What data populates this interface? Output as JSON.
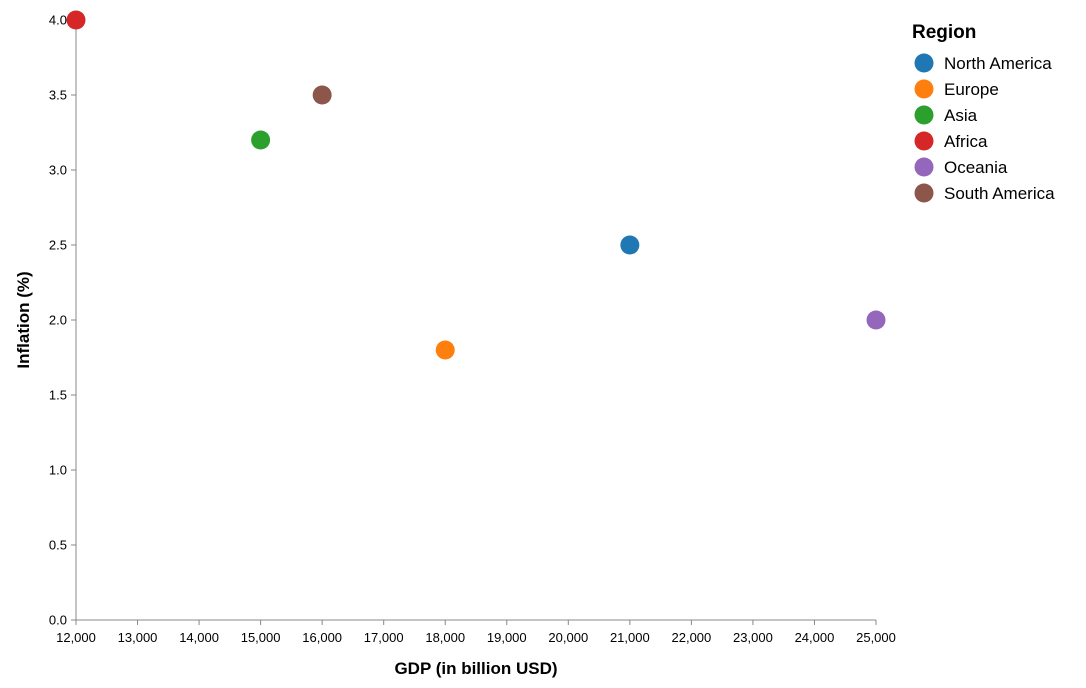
{
  "chart_data": {
    "type": "scatter",
    "xlabel": "GDP (in billion USD)",
    "ylabel": "Inflation (%)",
    "xlim": [
      12000,
      25000
    ],
    "ylim": [
      0,
      4
    ],
    "x_ticks": [
      12000,
      13000,
      14000,
      15000,
      16000,
      17000,
      18000,
      19000,
      20000,
      21000,
      22000,
      23000,
      24000,
      25000
    ],
    "x_tick_labels": [
      "12,000",
      "13,000",
      "14,000",
      "15,000",
      "16,000",
      "17,000",
      "18,000",
      "19,000",
      "20,000",
      "21,000",
      "22,000",
      "23,000",
      "24,000",
      "25,000"
    ],
    "y_ticks": [
      0,
      0.5,
      1,
      1.5,
      2,
      2.5,
      3,
      3.5,
      4
    ],
    "y_tick_labels": [
      "0.0",
      "0.5",
      "1.0",
      "1.5",
      "2.0",
      "2.5",
      "3.0",
      "3.5",
      "4.0"
    ],
    "grid": false,
    "legend": {
      "title": "Region",
      "position": "top-right"
    },
    "series": [
      {
        "name": "North America",
        "color": "#1f77b4",
        "points": [
          {
            "x": 21000,
            "y": 2.5
          }
        ]
      },
      {
        "name": "Europe",
        "color": "#ff7f0e",
        "points": [
          {
            "x": 18000,
            "y": 1.8
          }
        ]
      },
      {
        "name": "Asia",
        "color": "#2ca02c",
        "points": [
          {
            "x": 15000,
            "y": 3.2
          }
        ]
      },
      {
        "name": "Africa",
        "color": "#d62728",
        "points": [
          {
            "x": 12000,
            "y": 4.0
          }
        ]
      },
      {
        "name": "Oceania",
        "color": "#9467bd",
        "points": [
          {
            "x": 25000,
            "y": 2.0
          }
        ]
      },
      {
        "name": "South America",
        "color": "#8c564b",
        "points": [
          {
            "x": 16000,
            "y": 3.5
          }
        ]
      }
    ]
  }
}
